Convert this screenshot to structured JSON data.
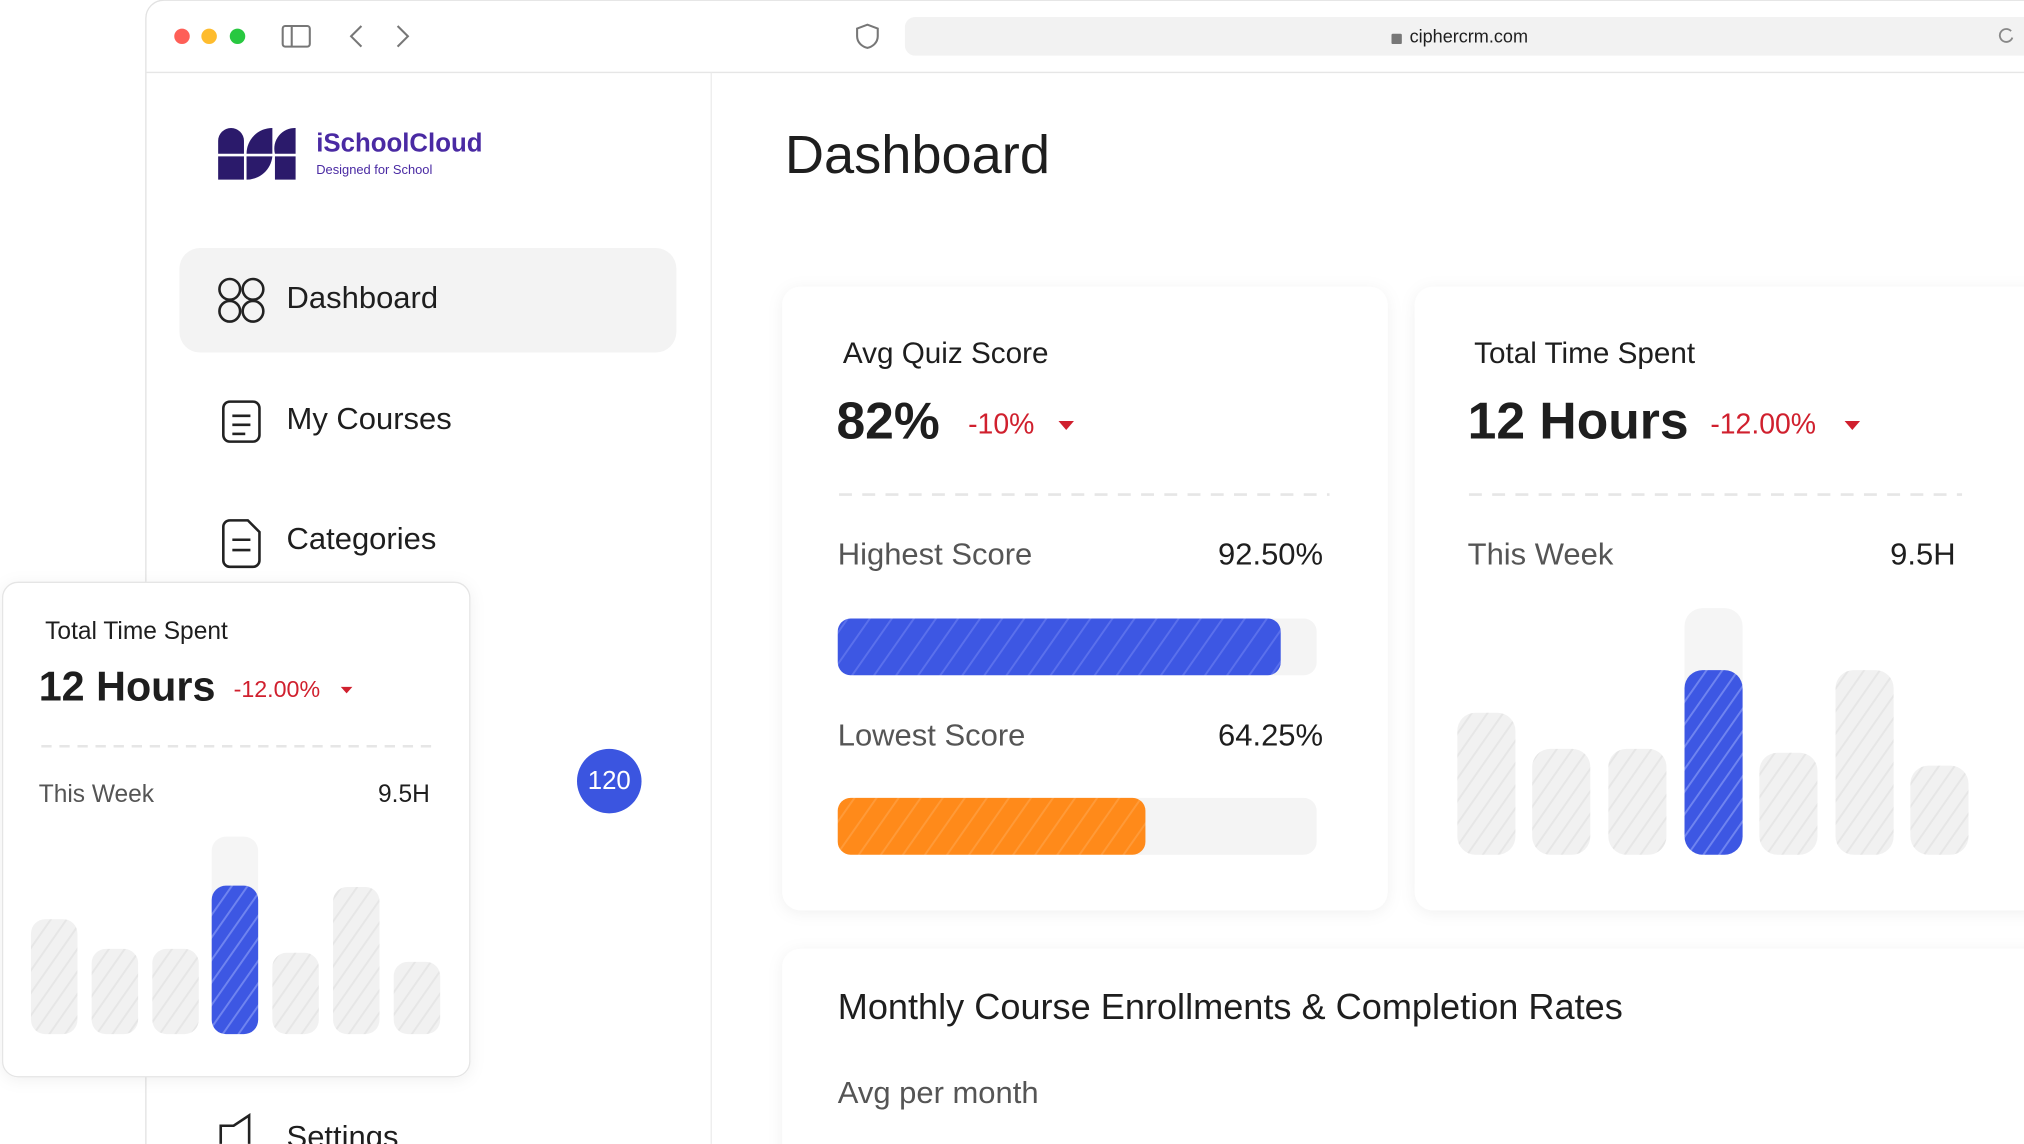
{
  "browser": {
    "url": "ciphercrm.com"
  },
  "sidebar": {
    "brand": {
      "name": "iSchoolCloud",
      "tagline": "Designed for School"
    },
    "nav": [
      "Dashboard",
      "My Courses",
      "Categories",
      "Settings"
    ],
    "badge": "120"
  },
  "main": {
    "heading": "Dashboard",
    "quiz_card": {
      "title": "Avg Quiz Score",
      "value": "82%",
      "change": "-10%",
      "highest": {
        "label": "Highest Score",
        "value": 92.5,
        "value_label": "92.50%"
      },
      "lowest": {
        "label": "Lowest Score",
        "value": 64.25,
        "value_label": "64.25%"
      }
    },
    "time_card": {
      "title": "Total Time Spent",
      "value": "12 Hours",
      "change": "-12.00%",
      "period": "This Week",
      "period_value": "9.5H"
    },
    "enrollment_card": {
      "title": "Monthly Course Enrollments & Completion Rates",
      "subtitle": "Avg per month"
    }
  },
  "floating_card": {
    "title": "Total Time Spent",
    "value": "12 Hours",
    "change": "-12.00%",
    "period": "This Week",
    "period_value": "9.5H"
  }
}
